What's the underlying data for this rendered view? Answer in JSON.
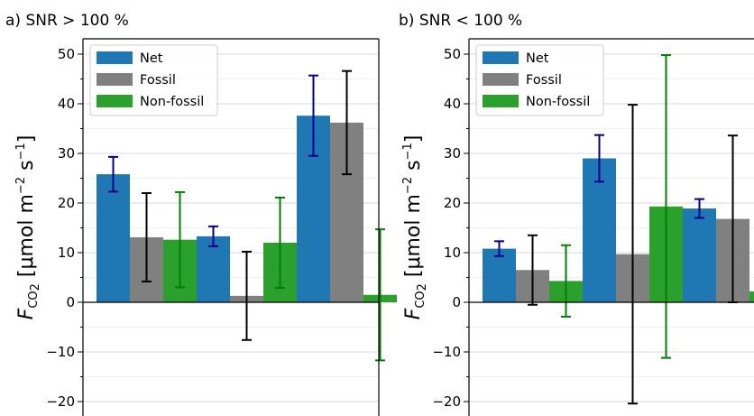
{
  "chart_data": [
    {
      "type": "bar",
      "title": "a) SNR > 100 %",
      "ylabel": "F_CO2 [μmol m^-2 s^-1]",
      "ylim": [
        -23,
        54
      ],
      "yticks": [
        -20,
        -10,
        0,
        10,
        20,
        30,
        40,
        50
      ],
      "grid": true,
      "legend_position": "top-left",
      "categories": [
        "",
        "",
        ""
      ],
      "series": [
        {
          "name": "Net",
          "color": "#1f77b4",
          "error_color": "#00008b",
          "values": [
            25.8,
            13.3,
            37.6
          ],
          "error": [
            3.5,
            2.0,
            8.1
          ]
        },
        {
          "name": "Fossil",
          "color": "#808080",
          "error_color": "#000000",
          "values": [
            13.1,
            1.3,
            36.2
          ],
          "error": [
            8.9,
            8.9,
            10.4
          ]
        },
        {
          "name": "Non-fossil",
          "color": "#2ca02c",
          "error_color": "#008000",
          "values": [
            12.6,
            12.0,
            1.5
          ],
          "error": [
            9.6,
            9.1,
            13.2
          ]
        }
      ]
    },
    {
      "type": "bar",
      "title": "b) SNR < 100 %",
      "ylabel": "F_CO2 [μmol m^-2 s^-1]",
      "ylim": [
        -23,
        54
      ],
      "yticks": [
        -20,
        -10,
        0,
        10,
        20,
        30,
        40,
        50
      ],
      "grid": true,
      "legend_position": "top-left",
      "categories": [
        "",
        "",
        ""
      ],
      "series": [
        {
          "name": "Net",
          "color": "#1f77b4",
          "error_color": "#00008b",
          "values": [
            10.8,
            29.0,
            18.9
          ],
          "error": [
            1.5,
            4.7,
            1.9
          ]
        },
        {
          "name": "Fossil",
          "color": "#808080",
          "error_color": "#000000",
          "values": [
            6.5,
            9.7,
            16.8
          ],
          "error": [
            7.0,
            30.1,
            16.8
          ]
        },
        {
          "name": "Non-fossil",
          "color": "#2ca02c",
          "error_color": "#008000",
          "values": [
            4.3,
            19.3,
            2.2
          ],
          "error": [
            7.2,
            30.5,
            16.8
          ]
        }
      ]
    }
  ],
  "legend": {
    "net": "Net",
    "fossil": "Fossil",
    "nonfossil": "Non-fossil"
  }
}
